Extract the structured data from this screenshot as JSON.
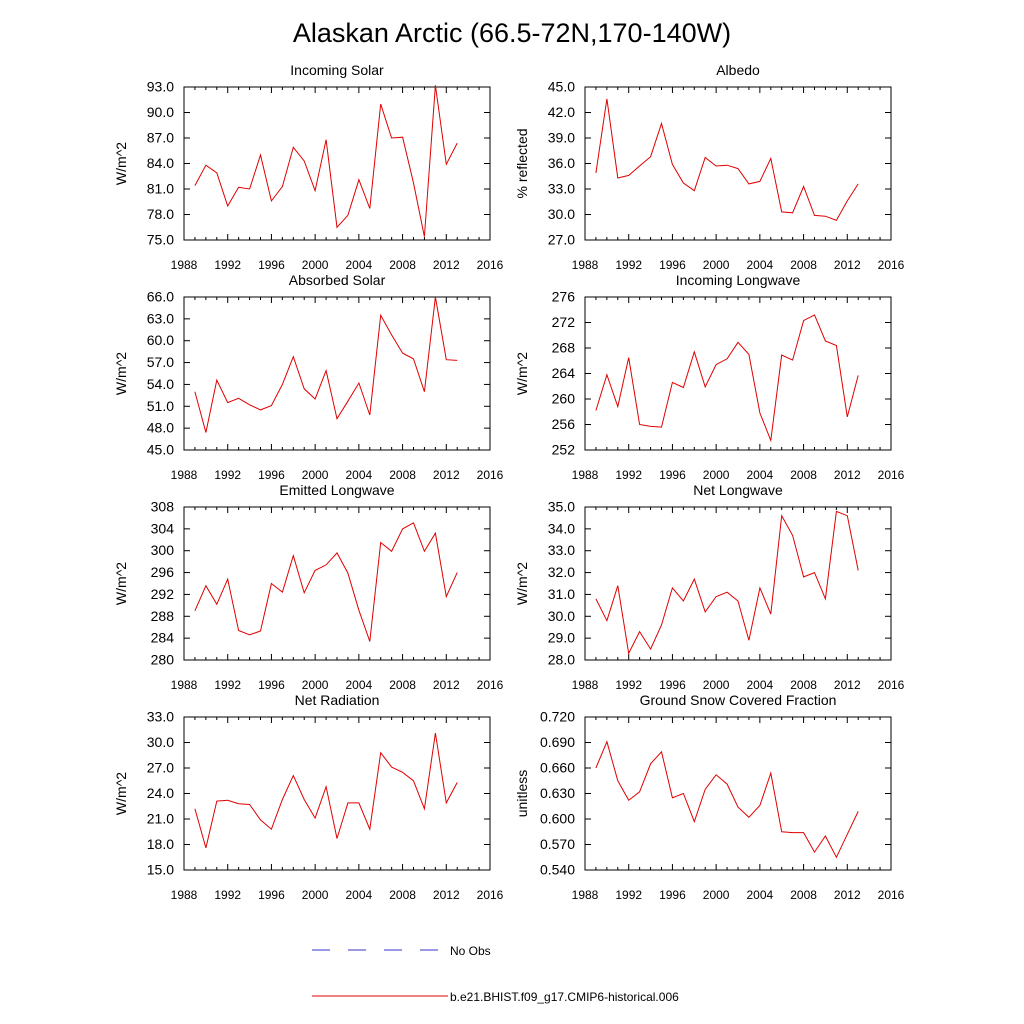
{
  "figure_title": "Alaskan Arctic (66.5-72N,170-140W)",
  "legend": {
    "entries": [
      {
        "label": "No Obs",
        "color": "#3333cc",
        "style": "dashed"
      },
      {
        "label": "b.e21.BHIST.f09_g17.CMIP6-historical.006",
        "color": "#e00000",
        "style": "solid"
      }
    ]
  },
  "colors": {
    "model_line": "#e00000"
  },
  "chart_data": [
    {
      "type": "line",
      "title": "Incoming Solar",
      "ylabel": "W/m^2",
      "xlabel": "",
      "xlim": [
        1988,
        2016
      ],
      "xticks": [
        1988,
        1992,
        1996,
        2000,
        2004,
        2008,
        2012,
        2016
      ],
      "ylim": [
        75.0,
        93.0
      ],
      "yticks": [
        "75.0",
        "78.0",
        "81.0",
        "84.0",
        "87.0",
        "90.0",
        "93.0"
      ],
      "x": [
        1989,
        1990,
        1991,
        1992,
        1993,
        1994,
        1995,
        1996,
        1997,
        1998,
        1999,
        2000,
        2001,
        2002,
        2003,
        2004,
        2005,
        2006,
        2007,
        2008,
        2009,
        2010,
        2011,
        2012,
        2013
      ],
      "series": [
        {
          "name": "b.e21.BHIST.f09_g17.CMIP6-historical.006",
          "values": [
            81.4,
            83.8,
            82.9,
            79.0,
            81.2,
            81.0,
            85.0,
            79.6,
            81.3,
            85.9,
            84.3,
            80.8,
            86.8,
            76.5,
            77.9,
            82.1,
            78.7,
            91.0,
            87.0,
            87.1,
            81.7,
            75.4,
            93.2,
            83.9,
            86.4
          ]
        }
      ]
    },
    {
      "type": "line",
      "title": "Albedo",
      "ylabel": "% reflected",
      "xlabel": "",
      "xlim": [
        1988,
        2016
      ],
      "xticks": [
        1988,
        1992,
        1996,
        2000,
        2004,
        2008,
        2012,
        2016
      ],
      "ylim": [
        27.0,
        45.0
      ],
      "yticks": [
        "27.0",
        "30.0",
        "33.0",
        "36.0",
        "39.0",
        "42.0",
        "45.0"
      ],
      "x": [
        1989,
        1990,
        1991,
        1992,
        1993,
        1994,
        1995,
        1996,
        1997,
        1998,
        1999,
        2000,
        2001,
        2002,
        2003,
        2004,
        2005,
        2006,
        2007,
        2008,
        2009,
        2010,
        2011,
        2012,
        2013
      ],
      "series": [
        {
          "name": "b.e21.BHIST.f09_g17.CMIP6-historical.006",
          "values": [
            34.9,
            43.6,
            34.3,
            34.6,
            35.7,
            36.8,
            40.7,
            35.9,
            33.7,
            32.8,
            36.7,
            35.7,
            35.8,
            35.4,
            33.6,
            33.9,
            36.6,
            30.3,
            30.2,
            33.3,
            29.9,
            29.8,
            29.3,
            31.6,
            33.6
          ]
        }
      ]
    },
    {
      "type": "line",
      "title": "Absorbed Solar",
      "ylabel": "W/m^2",
      "xlabel": "",
      "xlim": [
        1988,
        2016
      ],
      "xticks": [
        1988,
        1992,
        1996,
        2000,
        2004,
        2008,
        2012,
        2016
      ],
      "ylim": [
        45.0,
        66.0
      ],
      "yticks": [
        "45.0",
        "48.0",
        "51.0",
        "54.0",
        "57.0",
        "60.0",
        "63.0",
        "66.0"
      ],
      "x": [
        1989,
        1990,
        1991,
        1992,
        1993,
        1994,
        1995,
        1996,
        1997,
        1998,
        1999,
        2000,
        2001,
        2002,
        2003,
        2004,
        2005,
        2006,
        2007,
        2008,
        2009,
        2010,
        2011,
        2012,
        2013
      ],
      "series": [
        {
          "name": "b.e21.BHIST.f09_g17.CMIP6-historical.006",
          "values": [
            53.0,
            47.4,
            54.6,
            51.5,
            52.1,
            51.2,
            50.5,
            51.1,
            54.0,
            57.8,
            53.4,
            52.0,
            55.9,
            49.3,
            51.7,
            54.2,
            49.8,
            63.5,
            60.8,
            58.3,
            57.5,
            53.0,
            66.0,
            57.4,
            57.3
          ]
        }
      ]
    },
    {
      "type": "line",
      "title": "Incoming Longwave",
      "ylabel": "W/m^2",
      "xlabel": "",
      "xlim": [
        1988,
        2016
      ],
      "xticks": [
        1988,
        1992,
        1996,
        2000,
        2004,
        2008,
        2012,
        2016
      ],
      "ylim": [
        252,
        276
      ],
      "yticks": [
        "252",
        "256",
        "260",
        "264",
        "268",
        "272",
        "276"
      ],
      "x": [
        1989,
        1990,
        1991,
        1992,
        1993,
        1994,
        1995,
        1996,
        1997,
        1998,
        1999,
        2000,
        2001,
        2002,
        2003,
        2004,
        2005,
        2006,
        2007,
        2008,
        2009,
        2010,
        2011,
        2012,
        2013
      ],
      "series": [
        {
          "name": "b.e21.BHIST.f09_g17.CMIP6-historical.006",
          "values": [
            258.2,
            263.8,
            258.8,
            266.5,
            256.0,
            255.7,
            255.6,
            262.6,
            261.8,
            267.4,
            261.9,
            265.4,
            266.3,
            268.9,
            267.0,
            257.8,
            253.5,
            266.9,
            266.1,
            272.3,
            273.2,
            269.1,
            268.4,
            257.2,
            263.7
          ]
        }
      ]
    },
    {
      "type": "line",
      "title": "Emitted Longwave",
      "ylabel": "W/m^2",
      "xlabel": "",
      "xlim": [
        1988,
        2016
      ],
      "xticks": [
        1988,
        1992,
        1996,
        2000,
        2004,
        2008,
        2012,
        2016
      ],
      "ylim": [
        280,
        308
      ],
      "yticks": [
        "280",
        "284",
        "288",
        "292",
        "296",
        "300",
        "304",
        "308"
      ],
      "x": [
        1989,
        1990,
        1991,
        1992,
        1993,
        1994,
        1995,
        1996,
        1997,
        1998,
        1999,
        2000,
        2001,
        2002,
        2003,
        2004,
        2005,
        2006,
        2007,
        2008,
        2009,
        2010,
        2011,
        2012,
        2013
      ],
      "series": [
        {
          "name": "b.e21.BHIST.f09_g17.CMIP6-historical.006",
          "values": [
            289.0,
            293.6,
            290.2,
            294.8,
            285.4,
            284.6,
            285.3,
            294.0,
            292.4,
            299.1,
            292.3,
            296.4,
            297.4,
            299.6,
            295.9,
            289.1,
            283.4,
            301.5,
            299.9,
            304.0,
            305.1,
            299.9,
            303.2,
            291.6,
            296.0
          ]
        }
      ]
    },
    {
      "type": "line",
      "title": "Net Longwave",
      "ylabel": "W/m^2",
      "xlabel": "",
      "xlim": [
        1988,
        2016
      ],
      "xticks": [
        1988,
        1992,
        1996,
        2000,
        2004,
        2008,
        2012,
        2016
      ],
      "ylim": [
        28.0,
        35.0
      ],
      "yticks": [
        "28.0",
        "29.0",
        "30.0",
        "31.0",
        "32.0",
        "33.0",
        "34.0",
        "35.0"
      ],
      "x": [
        1989,
        1990,
        1991,
        1992,
        1993,
        1994,
        1995,
        1996,
        1997,
        1998,
        1999,
        2000,
        2001,
        2002,
        2003,
        2004,
        2005,
        2006,
        2007,
        2008,
        2009,
        2010,
        2011,
        2012,
        2013
      ],
      "series": [
        {
          "name": "b.e21.BHIST.f09_g17.CMIP6-historical.006",
          "values": [
            30.8,
            29.8,
            31.4,
            28.3,
            29.3,
            28.5,
            29.6,
            31.3,
            30.7,
            31.7,
            30.2,
            30.9,
            31.1,
            30.7,
            28.9,
            31.3,
            30.1,
            34.6,
            33.7,
            31.8,
            32.0,
            30.8,
            34.8,
            34.6,
            32.1
          ]
        }
      ]
    },
    {
      "type": "line",
      "title": "Net Radiation",
      "ylabel": "W/m^2",
      "xlabel": "",
      "xlim": [
        1988,
        2016
      ],
      "xticks": [
        1988,
        1992,
        1996,
        2000,
        2004,
        2008,
        2012,
        2016
      ],
      "ylim": [
        15.0,
        33.0
      ],
      "yticks": [
        "15.0",
        "18.0",
        "21.0",
        "24.0",
        "27.0",
        "30.0",
        "33.0"
      ],
      "x": [
        1989,
        1990,
        1991,
        1992,
        1993,
        1994,
        1995,
        1996,
        1997,
        1998,
        1999,
        2000,
        2001,
        2002,
        2003,
        2004,
        2005,
        2006,
        2007,
        2008,
        2009,
        2010,
        2011,
        2012,
        2013
      ],
      "series": [
        {
          "name": "b.e21.BHIST.f09_g17.CMIP6-historical.006",
          "values": [
            22.2,
            17.6,
            23.1,
            23.2,
            22.8,
            22.7,
            20.9,
            19.8,
            23.3,
            26.1,
            23.3,
            21.1,
            24.8,
            18.7,
            22.9,
            22.9,
            19.8,
            28.8,
            27.1,
            26.5,
            25.5,
            22.2,
            31.1,
            22.9,
            25.3
          ]
        }
      ]
    },
    {
      "type": "line",
      "title": "Ground Snow Covered Fraction",
      "ylabel": "unitless",
      "xlabel": "",
      "xlim": [
        1988,
        2016
      ],
      "xticks": [
        1988,
        1992,
        1996,
        2000,
        2004,
        2008,
        2012,
        2016
      ],
      "ylim": [
        0.54,
        0.72
      ],
      "yticks": [
        "0.540",
        "0.570",
        "0.600",
        "0.630",
        "0.660",
        "0.690",
        "0.720"
      ],
      "x": [
        1989,
        1990,
        1991,
        1992,
        1993,
        1994,
        1995,
        1996,
        1997,
        1998,
        1999,
        2000,
        2001,
        2002,
        2003,
        2004,
        2005,
        2006,
        2007,
        2008,
        2009,
        2010,
        2011,
        2012,
        2013
      ],
      "series": [
        {
          "name": "b.e21.BHIST.f09_g17.CMIP6-historical.006",
          "values": [
            0.66,
            0.691,
            0.645,
            0.622,
            0.632,
            0.665,
            0.679,
            0.625,
            0.63,
            0.597,
            0.635,
            0.652,
            0.641,
            0.614,
            0.602,
            0.616,
            0.654,
            0.585,
            0.584,
            0.584,
            0.561,
            0.58,
            0.555,
            0.582,
            0.609
          ]
        }
      ]
    }
  ]
}
